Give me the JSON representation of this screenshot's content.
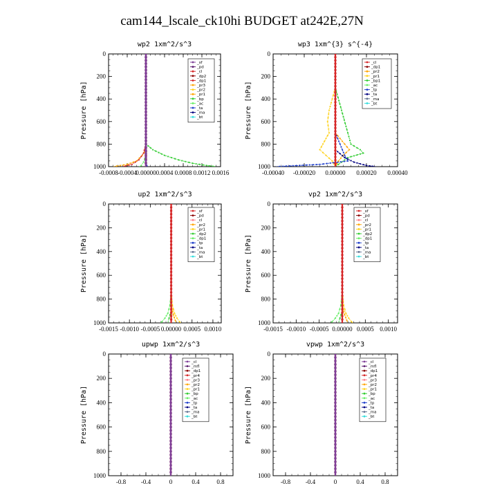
{
  "title": "cam144_lscale_ck10hi  BUDGET at242E,27N",
  "colors": {
    "purple": "#7f3f98",
    "darkpurple": "#5b1a6e",
    "darkred": "#8b0000",
    "red": "#d62728",
    "pink": "#ff7f8a",
    "orange": "#ffa500",
    "yellow": "#ffd21a",
    "green": "#33cc33",
    "lightgreen": "#66ee66",
    "blue": "#1f3fcc",
    "navy": "#000080",
    "cyan": "#33dddd",
    "slate": "#607090"
  },
  "chart_data": [
    {
      "id": "wp2",
      "type": "line",
      "title": "wp2   1xm^2/s^3",
      "ylabel": "Pressure  [hPa]",
      "xlim": [
        -0.0008,
        0.0016
      ],
      "ylim": [
        1000,
        0
      ],
      "xticks": [
        -0.0008,
        -0.0004,
        0.0,
        0.0004,
        0.0008,
        0.0012,
        0.0016
      ],
      "xtick_labels": [
        "-0.0008",
        "-0.0004",
        "0.00000",
        "0.0004",
        "0.0008",
        "0.0012",
        "0.0016"
      ],
      "yticks": [
        0,
        200,
        400,
        600,
        800,
        1000
      ],
      "legend": [
        "_sf",
        "_pd",
        "_cl",
        "_dp2",
        "_dp1",
        "_pr3",
        "_pr2",
        "_pr1",
        "_bp",
        "_ac",
        "_ta",
        "_ma",
        "_bt"
      ],
      "legend_colors": [
        "purple",
        "darkpurple",
        "red",
        "darkred",
        "red",
        "orange",
        "yellow",
        "orange",
        "green",
        "lightgreen",
        "blue",
        "navy",
        "cyan"
      ],
      "series": [
        {
          "name": "_bp",
          "color": "green",
          "y": [
            800,
            850,
            900,
            940,
            970,
            990,
            1000
          ],
          "x": [
            0.0,
            0.00015,
            0.0004,
            0.0007,
            0.001,
            0.0013,
            0.0015
          ]
        },
        {
          "name": "_pr1",
          "color": "orange",
          "y": [
            850,
            900,
            950,
            980,
            1000
          ],
          "x": [
            0.0,
            -8e-05,
            -0.0002,
            -0.0004,
            -0.0007
          ]
        },
        {
          "name": "_dp1",
          "color": "red",
          "y": [
            800,
            880,
            940,
            980,
            1000
          ],
          "x": [
            0.0,
            -5e-05,
            -0.00015,
            -0.0003,
            -0.0005
          ]
        },
        {
          "name": "_ac",
          "color": "lightgreen",
          "y": [
            900,
            960,
            990,
            1000
          ],
          "x": [
            0.0,
            -5e-05,
            -0.0001,
            -0.00015
          ]
        },
        {
          "name": "_ta",
          "color": "blue",
          "y": [
            950,
            990,
            1000
          ],
          "x": [
            0.0,
            2e-05,
            3e-05
          ]
        },
        {
          "name": "_dp2",
          "color": "darkred",
          "y": [
            0,
            200,
            400,
            600,
            800,
            900,
            1000
          ],
          "x": [
            0,
            0,
            0,
            0,
            0,
            0,
            0
          ]
        },
        {
          "name": "_pd",
          "color": "darkpurple",
          "y": [
            0,
            200,
            400,
            600,
            800,
            1000
          ],
          "x": [
            0,
            0,
            0,
            0,
            0,
            0
          ]
        },
        {
          "name": "_sf",
          "color": "purple",
          "y": [
            0,
            200,
            400,
            600,
            800,
            1000
          ],
          "x": [
            0,
            0,
            0,
            0,
            0,
            0
          ]
        }
      ]
    },
    {
      "id": "wp3",
      "type": "line",
      "title": "wp3   1xm^{3} s^{-4}",
      "ylabel": "Pressure  [hPa]",
      "xlim": [
        -0.0004,
        0.0004
      ],
      "ylim": [
        1000,
        0
      ],
      "xticks": [
        -0.0004,
        -0.0002,
        0.0,
        0.0002,
        0.0004
      ],
      "xtick_labels": [
        "-0.00040",
        "-0.00020",
        "0.00000",
        "0.00020",
        "0.00040"
      ],
      "yticks": [
        0,
        200,
        400,
        600,
        800,
        1000
      ],
      "legend": [
        "_cl",
        "_dp1",
        "_pr2",
        "_pr1",
        "_bp1",
        "_ac",
        "_tp",
        "_ta",
        "_ma",
        "_bt"
      ],
      "legend_colors": [
        "red",
        "darkred",
        "orange",
        "yellow",
        "green",
        "lightgreen",
        "blue",
        "navy",
        "slate",
        "cyan"
      ],
      "series": [
        {
          "name": "_pr2",
          "color": "yellow",
          "y": [
            300,
            400,
            500,
            600,
            700,
            800,
            850,
            900,
            950,
            1000
          ],
          "x": [
            0.0,
            -2e-05,
            -4e-05,
            -5e-05,
            -4e-05,
            -8e-05,
            -0.0001,
            -6e-05,
            -2e-05,
            0.0
          ]
        },
        {
          "name": "_pr1",
          "color": "orange",
          "y": [
            700,
            800,
            850,
            900,
            950,
            1000
          ],
          "x": [
            0.0,
            6e-05,
            9e-05,
            5e-05,
            2e-05,
            0.0
          ]
        },
        {
          "name": "_bp1",
          "color": "green",
          "y": [
            300,
            500,
            700,
            800,
            850,
            880,
            920,
            960,
            1000
          ],
          "x": [
            0.0,
            4e-05,
            8e-05,
            0.0001,
            0.00016,
            0.00018,
            8e-05,
            4e-05,
            0.0
          ]
        },
        {
          "name": "_ta",
          "color": "blue",
          "y": [
            700,
            800,
            900,
            950,
            980,
            1000
          ],
          "x": [
            0.0,
            3e-05,
            6e-05,
            8e-05,
            -0.0001,
            -0.00038
          ]
        },
        {
          "name": "_tp",
          "color": "navy",
          "y": [
            850,
            920,
            960,
            990,
            1000
          ],
          "x": [
            0.0,
            6e-05,
            0.00012,
            0.0002,
            0.00026
          ]
        },
        {
          "name": "_cl",
          "color": "red",
          "y": [
            0,
            200,
            400,
            600,
            800,
            1000
          ],
          "x": [
            0,
            0,
            0,
            0,
            0,
            0
          ]
        }
      ]
    },
    {
      "id": "up2",
      "type": "line",
      "title": "up2   1xm^2/s^3",
      "ylabel": "Pressure  [hPa]",
      "xlim": [
        -0.0015,
        0.0012
      ],
      "ylim": [
        1000,
        0
      ],
      "xticks": [
        -0.0015,
        -0.001,
        -0.0005,
        0.0,
        0.0005,
        0.001
      ],
      "xtick_labels": [
        "-0.0015",
        "-0.0010",
        "-0.0005",
        "0.00000",
        "0.0005",
        "0.0010"
      ],
      "yticks": [
        0,
        200,
        400,
        600,
        800,
        1000
      ],
      "legend": [
        "_sf",
        "_pd",
        "_cl",
        "_pr2",
        "_pr1",
        "_dp2",
        "_dp1",
        "_tp",
        "_ta",
        "_ma",
        "_bt"
      ],
      "legend_colors": [
        "red",
        "darkred",
        "pink",
        "orange",
        "yellow",
        "green",
        "lightgreen",
        "blue",
        "navy",
        "slate",
        "cyan"
      ],
      "series": [
        {
          "name": "_dp1",
          "color": "lightgreen",
          "y": [
            750,
            850,
            920,
            960,
            990,
            1000
          ],
          "x": [
            0.0,
            -3e-05,
            -8e-05,
            -0.00015,
            -0.00022,
            -0.00025
          ]
        },
        {
          "name": "_pr1",
          "color": "yellow",
          "y": [
            750,
            850,
            920,
            960,
            990,
            1000
          ],
          "x": [
            0.0,
            3e-05,
            8e-05,
            0.00014,
            0.0002,
            0.00023
          ]
        },
        {
          "name": "_pr2",
          "color": "orange",
          "y": [
            850,
            930,
            980,
            1000
          ],
          "x": [
            0.0,
            5e-05,
            0.0001,
            0.00012
          ]
        },
        {
          "name": "_dp2",
          "color": "green",
          "y": [
            900,
            960,
            1000
          ],
          "x": [
            0.0,
            -5e-05,
            -8e-05
          ]
        },
        {
          "name": "_sf",
          "color": "red",
          "y": [
            0,
            200,
            400,
            600,
            800,
            1000
          ],
          "x": [
            0,
            0,
            0,
            0,
            0,
            0
          ]
        }
      ]
    },
    {
      "id": "vp2",
      "type": "line",
      "title": "vp2   1xm^2/s^3",
      "ylabel": "Pressure  [hPa]",
      "xlim": [
        -0.0015,
        0.0012
      ],
      "ylim": [
        1000,
        0
      ],
      "xticks": [
        -0.0015,
        -0.001,
        -0.0005,
        0.0,
        0.0005,
        0.001
      ],
      "xtick_labels": [
        "-0.0015",
        "-0.0010",
        "-0.0005",
        "0.00000",
        "0.0005",
        "0.0010"
      ],
      "yticks": [
        0,
        200,
        400,
        600,
        800,
        1000
      ],
      "legend": [
        "_sf",
        "_pd",
        "_cl",
        "_pr2",
        "_pr1",
        "_dp2",
        "_dp1",
        "_tp",
        "_ta",
        "_ma",
        "_bt"
      ],
      "legend_colors": [
        "red",
        "darkred",
        "pink",
        "orange",
        "yellow",
        "green",
        "lightgreen",
        "blue",
        "navy",
        "slate",
        "cyan"
      ],
      "series": [
        {
          "name": "_dp1",
          "color": "lightgreen",
          "y": [
            750,
            850,
            920,
            960,
            990,
            1000
          ],
          "x": [
            0.0,
            -3e-05,
            -8e-05,
            -0.00015,
            -0.00022,
            -0.00025
          ]
        },
        {
          "name": "_pr1",
          "color": "yellow",
          "y": [
            750,
            850,
            920,
            960,
            990,
            1000
          ],
          "x": [
            0.0,
            3e-05,
            8e-05,
            0.00014,
            0.0002,
            0.00023
          ]
        },
        {
          "name": "_pr2",
          "color": "orange",
          "y": [
            850,
            930,
            980,
            1000
          ],
          "x": [
            0.0,
            5e-05,
            0.0001,
            0.00012
          ]
        },
        {
          "name": "_dp2",
          "color": "green",
          "y": [
            900,
            960,
            1000
          ],
          "x": [
            0.0,
            -5e-05,
            -8e-05
          ]
        },
        {
          "name": "_sf",
          "color": "red",
          "y": [
            0,
            200,
            400,
            600,
            800,
            1000
          ],
          "x": [
            0,
            0,
            0,
            0,
            0,
            0
          ]
        }
      ]
    },
    {
      "id": "upwp",
      "type": "line",
      "title": "upwp   1xm^2/s^3",
      "ylabel": "Pressure  [hPa]",
      "xlim": [
        -1.0,
        1.0
      ],
      "ylim": [
        1000,
        0
      ],
      "xticks": [
        -0.8,
        -0.4,
        0.0,
        0.4,
        0.8
      ],
      "xtick_labels": [
        "-0.8",
        "-0.4",
        "0",
        "0.4",
        "0.8"
      ],
      "yticks": [
        0,
        200,
        400,
        600,
        800,
        1000
      ],
      "legend": [
        "_cl",
        "_mfl",
        "_dp1",
        "_pr4",
        "_pr3",
        "_pr2",
        "_pr1",
        "_bp",
        "_ac",
        "_tp",
        "_ta",
        "_ma",
        "_bt"
      ],
      "legend_colors": [
        "purple",
        "darkpurple",
        "darkred",
        "red",
        "pink",
        "orange",
        "yellow",
        "green",
        "lightgreen",
        "blue",
        "navy",
        "slate",
        "cyan"
      ],
      "series": [
        {
          "name": "_mfl",
          "color": "darkred",
          "y": [
            0,
            200,
            400,
            600,
            800,
            1000
          ],
          "x": [
            0,
            0,
            0,
            0,
            0,
            0
          ]
        },
        {
          "name": "_cl",
          "color": "purple",
          "y": [
            0,
            200,
            400,
            600,
            800,
            1000
          ],
          "x": [
            0,
            0,
            0,
            0,
            0,
            0
          ]
        }
      ]
    },
    {
      "id": "vpwp",
      "type": "line",
      "title": "vpwp   1xm^2/s^3",
      "ylabel": "Pressure  [hPa]",
      "xlim": [
        -1.0,
        1.0
      ],
      "ylim": [
        1000,
        0
      ],
      "xticks": [
        -0.8,
        -0.4,
        0.0,
        0.4,
        0.8
      ],
      "xtick_labels": [
        "-0.8",
        "-0.4",
        "0",
        "0.4",
        "0.8"
      ],
      "yticks": [
        0,
        200,
        400,
        600,
        800,
        1000
      ],
      "legend": [
        "_cl",
        "_mfl",
        "_dp1",
        "_pr4",
        "_pr3",
        "_pr2",
        "_pr1",
        "_bp",
        "_ac",
        "_tp",
        "_ta",
        "_ma",
        "_bt"
      ],
      "legend_colors": [
        "purple",
        "darkpurple",
        "darkred",
        "red",
        "pink",
        "orange",
        "yellow",
        "green",
        "lightgreen",
        "blue",
        "navy",
        "slate",
        "cyan"
      ],
      "series": [
        {
          "name": "_mfl",
          "color": "darkred",
          "y": [
            0,
            200,
            400,
            600,
            800,
            1000
          ],
          "x": [
            0,
            0,
            0,
            0,
            0,
            0
          ]
        },
        {
          "name": "_cl",
          "color": "purple",
          "y": [
            0,
            200,
            400,
            600,
            800,
            1000
          ],
          "x": [
            0,
            0,
            0,
            0,
            0,
            0
          ]
        }
      ]
    }
  ]
}
